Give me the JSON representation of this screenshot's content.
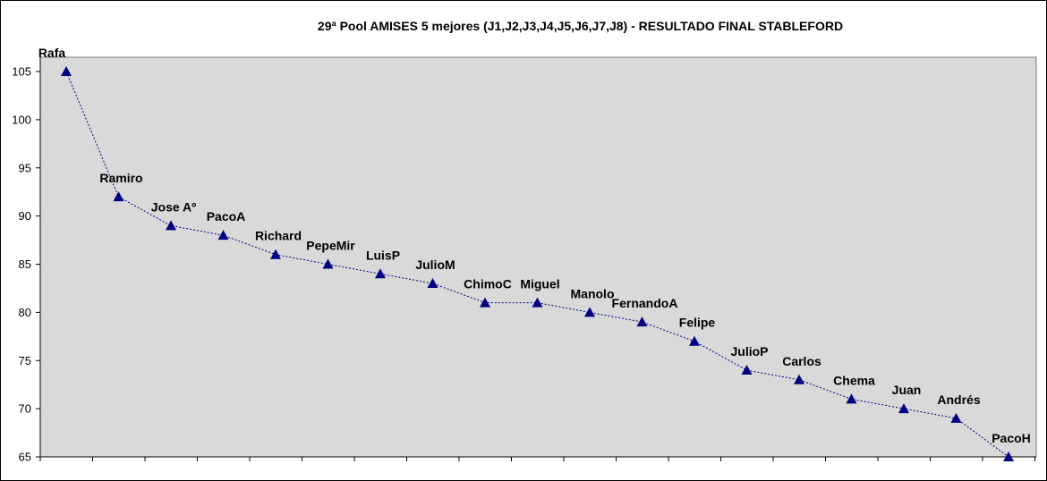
{
  "chart_data": {
    "type": "line",
    "title": "29ª Pool AMISES 5 mejores (J1,J2,J3,J4,J5,J6,J7,J8)  - RESULTADO FINAL STABLEFORD",
    "xlabel": "",
    "ylabel": "",
    "ylim": [
      65,
      105
    ],
    "yticks": [
      65,
      70,
      75,
      80,
      85,
      90,
      95,
      100,
      105
    ],
    "grid": false,
    "legend": "none",
    "categories": [
      "Rafa",
      "Ramiro",
      "Jose Aº",
      "PacoA",
      "Richard",
      "PepeMir",
      "LuisP",
      "JulioM",
      "ChimoC",
      "Miguel",
      "Manolo",
      "FernandoA",
      "Felipe",
      "JulioP",
      "Carlos",
      "Chema",
      "Juan",
      "Andrés",
      "PacoH"
    ],
    "series": [
      {
        "values": [
          105,
          92,
          89,
          88,
          86,
          85,
          84,
          83,
          81,
          81,
          80,
          79,
          77,
          74,
          73,
          71,
          70,
          69,
          65
        ]
      }
    ],
    "colors": {
      "plot_bg": "#d9d9d9",
      "series": "#000080"
    }
  }
}
